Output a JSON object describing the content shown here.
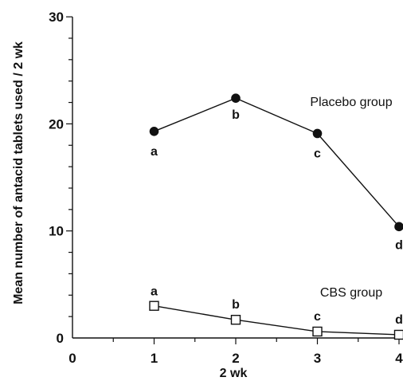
{
  "chart_data": {
    "type": "line",
    "title": "",
    "xlabel": "2 wk",
    "ylabel": "Mean number of antacid tablets used / 2 wk",
    "xlim": [
      0,
      4
    ],
    "ylim": [
      0,
      30
    ],
    "x_ticks": [
      "0",
      "1",
      "2",
      "3",
      "4"
    ],
    "y_ticks": [
      "0",
      "10",
      "20",
      "30"
    ],
    "grid": false,
    "series": [
      {
        "name": "Placebo group",
        "marker": "filled-circle",
        "x": [
          1,
          2,
          3,
          4
        ],
        "y": [
          19.3,
          22.4,
          19.1,
          10.4
        ],
        "point_labels": [
          "a",
          "b",
          "c",
          "d"
        ]
      },
      {
        "name": "CBS group",
        "marker": "open-square",
        "x": [
          1,
          2,
          3,
          4
        ],
        "y": [
          3.0,
          1.7,
          0.6,
          0.3
        ],
        "point_labels": [
          "a",
          "b",
          "c",
          "d"
        ]
      }
    ]
  }
}
